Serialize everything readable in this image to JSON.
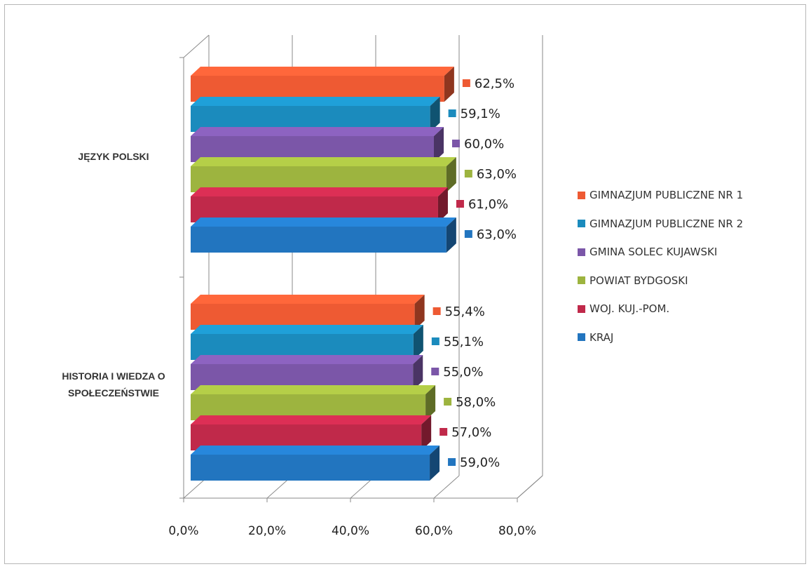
{
  "chart_data": {
    "type": "bar",
    "orientation": "horizontal",
    "style": "3d",
    "categories": [
      "JĘZYK POLSKI",
      "HISTORIA I WIEDZA O SPOŁECZEŃSTWIE"
    ],
    "series": [
      {
        "name": "GIMNAZJUM PUBLICZNE NR 1",
        "color": "#ee5a33",
        "values": [
          62.5,
          55.4
        ],
        "labels": [
          "62,5%",
          "55,4%"
        ]
      },
      {
        "name": "GIMNAZJUM PUBLICZNE NR 2",
        "color": "#1b8bbd",
        "values": [
          59.1,
          55.1
        ],
        "labels": [
          "59,1%",
          "55,1%"
        ]
      },
      {
        "name": "GMINA SOLEC KUJAWSKI",
        "color": "#7b56a8",
        "values": [
          60.0,
          55.0
        ],
        "labels": [
          "60,0%",
          "55,0%"
        ]
      },
      {
        "name": "POWIAT BYDGOSKI",
        "color": "#9db43f",
        "values": [
          63.0,
          58.0
        ],
        "labels": [
          "63,0%",
          "58,0%"
        ]
      },
      {
        "name": "WOJ. KUJ.-POM.",
        "color": "#c0294a",
        "values": [
          61.0,
          57.0
        ],
        "labels": [
          "61,0%",
          "57,0%"
        ]
      },
      {
        "name": "KRAJ",
        "color": "#2275bf",
        "values": [
          63.0,
          59.0
        ],
        "labels": [
          "63,0%",
          "59,0%"
        ]
      }
    ],
    "x_ticks": [
      0,
      20,
      40,
      60,
      80
    ],
    "x_tick_labels": [
      "0,0%",
      "20,0%",
      "40,0%",
      "60,0%",
      "80,0%"
    ],
    "xlim": [
      0,
      80
    ],
    "grid": true,
    "legend_position": "right",
    "title": "",
    "xlabel": "",
    "ylabel": ""
  }
}
